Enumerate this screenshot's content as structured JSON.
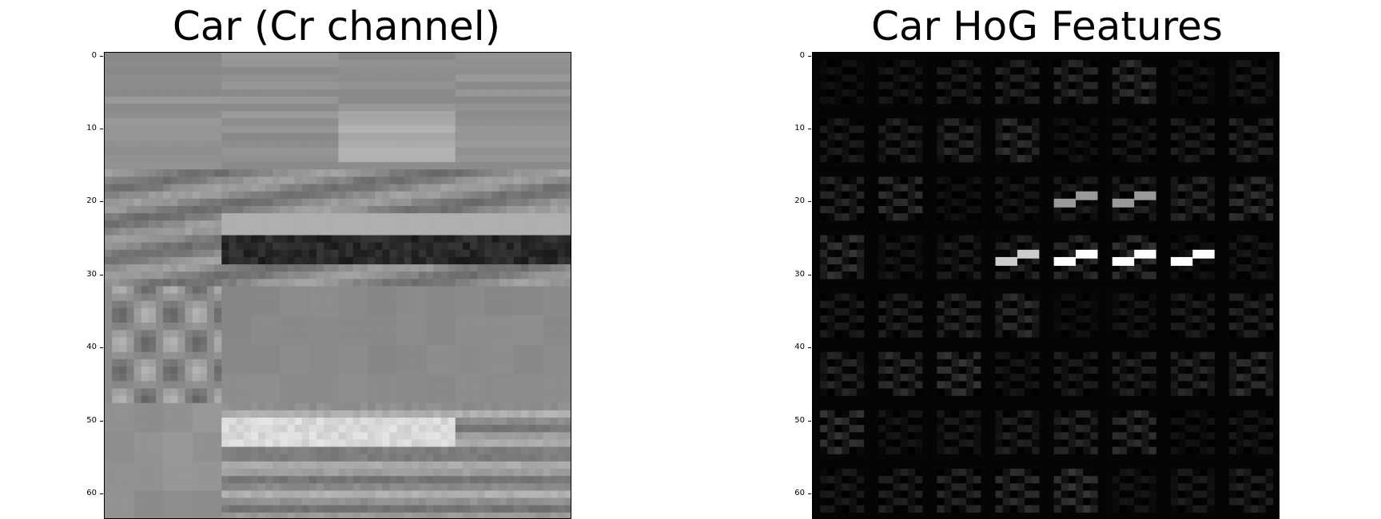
{
  "left_panel": {
    "title": "Car (Cr channel)",
    "y_ticks": [
      "0",
      "10",
      "20",
      "30",
      "40",
      "50",
      "60"
    ]
  },
  "right_panel": {
    "title": "Car HoG Features",
    "y_ticks": [
      "0",
      "10",
      "20",
      "30",
      "40",
      "50",
      "60"
    ]
  },
  "colors": {
    "background": "#ffffff",
    "axis": "#000000",
    "hog_background": "#050505"
  }
}
